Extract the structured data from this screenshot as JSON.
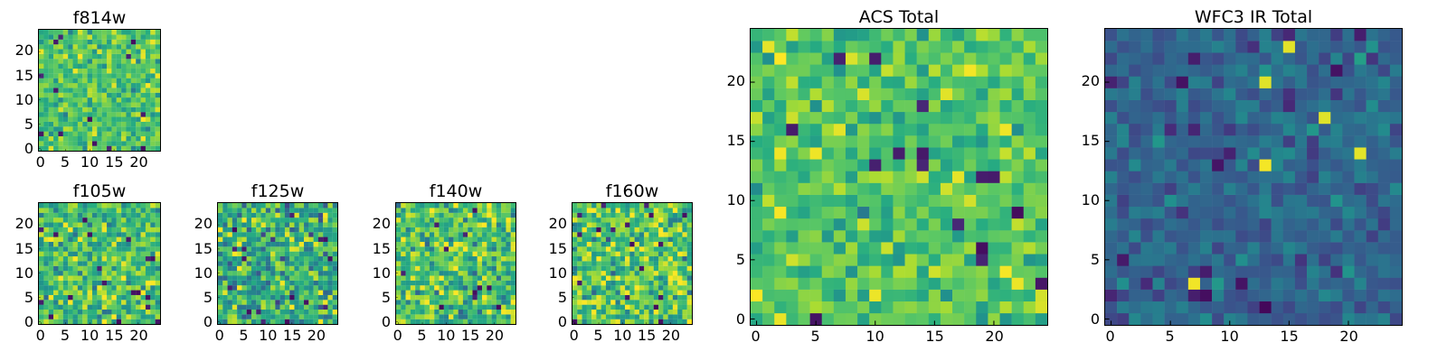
{
  "colormap": "viridis",
  "chart_data": [
    {
      "id": "f814w",
      "type": "heatmap",
      "title": "f814w",
      "xlim": [
        0,
        25
      ],
      "ylim": [
        0,
        25
      ],
      "grid_size": 25,
      "xticks": [
        "0",
        "5",
        "10",
        "15",
        "20"
      ],
      "yticks": [
        "0",
        "5",
        "10",
        "15",
        "20"
      ],
      "tick_values": [
        0,
        5,
        10,
        15,
        20
      ],
      "value_range": [
        0,
        1
      ],
      "mean_level": 0.72,
      "spread": 0.16,
      "seed": 814
    },
    {
      "id": "f105w",
      "type": "heatmap",
      "title": "f105w",
      "xlim": [
        0,
        25
      ],
      "ylim": [
        0,
        25
      ],
      "grid_size": 25,
      "xticks": [
        "0",
        "5",
        "10",
        "15",
        "20"
      ],
      "yticks": [
        "0",
        "5",
        "10",
        "15",
        "20"
      ],
      "tick_values": [
        0,
        5,
        10,
        15,
        20
      ],
      "value_range": [
        0,
        1
      ],
      "mean_level": 0.7,
      "spread": 0.2,
      "seed": 105
    },
    {
      "id": "f125w",
      "type": "heatmap",
      "title": "f125w",
      "xlim": [
        0,
        25
      ],
      "ylim": [
        0,
        25
      ],
      "grid_size": 25,
      "xticks": [
        "0",
        "5",
        "10",
        "15",
        "20"
      ],
      "yticks": [
        "0",
        "5",
        "10",
        "15",
        "20"
      ],
      "tick_values": [
        0,
        5,
        10,
        15,
        20
      ],
      "value_range": [
        0,
        1
      ],
      "mean_level": 0.62,
      "spread": 0.24,
      "seed": 125
    },
    {
      "id": "f140w",
      "type": "heatmap",
      "title": "f140w",
      "xlim": [
        0,
        25
      ],
      "ylim": [
        0,
        25
      ],
      "grid_size": 25,
      "xticks": [
        "0",
        "5",
        "10",
        "15",
        "20"
      ],
      "yticks": [
        "0",
        "5",
        "10",
        "15",
        "20"
      ],
      "tick_values": [
        0,
        5,
        10,
        15,
        20
      ],
      "value_range": [
        0,
        1
      ],
      "mean_level": 0.7,
      "spread": 0.22,
      "seed": 140
    },
    {
      "id": "f160w",
      "type": "heatmap",
      "title": "f160w",
      "xlim": [
        0,
        25
      ],
      "ylim": [
        0,
        25
      ],
      "grid_size": 25,
      "xticks": [
        "0",
        "5",
        "10",
        "15",
        "20"
      ],
      "yticks": [
        "0",
        "5",
        "10",
        "15",
        "20"
      ],
      "tick_values": [
        0,
        5,
        10,
        15,
        20
      ],
      "value_range": [
        0,
        1
      ],
      "mean_level": 0.72,
      "spread": 0.22,
      "seed": 160
    },
    {
      "id": "acs-total",
      "type": "heatmap",
      "title": "ACS Total",
      "xlim": [
        0,
        25
      ],
      "ylim": [
        0,
        25
      ],
      "grid_size": 25,
      "xticks": [
        "0",
        "5",
        "10",
        "15",
        "20"
      ],
      "yticks": [
        "0",
        "5",
        "10",
        "15",
        "20"
      ],
      "tick_values": [
        0,
        5,
        10,
        15,
        20
      ],
      "value_range": [
        0,
        1
      ],
      "mean_level": 0.72,
      "spread": 0.15,
      "seed": 901
    },
    {
      "id": "wfc3-ir-total",
      "type": "heatmap",
      "title": "WFC3 IR Total",
      "xlim": [
        0,
        25
      ],
      "ylim": [
        0,
        25
      ],
      "grid_size": 25,
      "xticks": [
        "0",
        "5",
        "10",
        "15",
        "20"
      ],
      "yticks": [
        "0",
        "5",
        "10",
        "15",
        "20"
      ],
      "tick_values": [
        0,
        5,
        10,
        15,
        20
      ],
      "value_range": [
        0,
        1
      ],
      "mean_level": 0.33,
      "spread": 0.11,
      "seed": 902
    }
  ]
}
